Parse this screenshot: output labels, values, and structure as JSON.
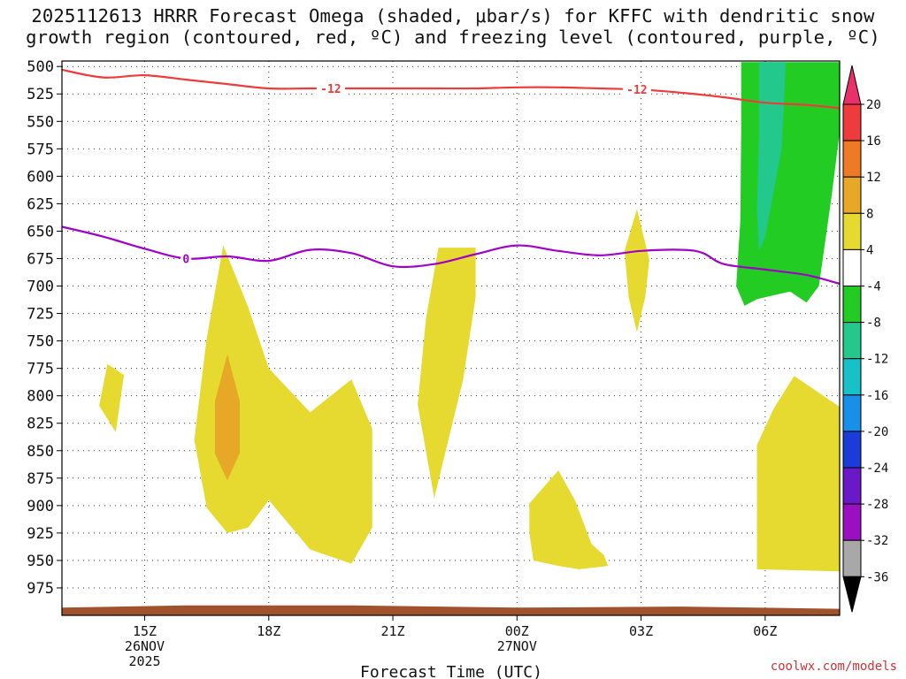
{
  "title": {
    "line1": "2025112613 HRRR Forecast Omega (shaded, μbar/s) for KFFC with dendritic snow",
    "line2": "growth region (contoured, red, ºC) and freezing level (contoured, purple, ºC)"
  },
  "credit": "coolwx.com/models",
  "chart_data": {
    "type": "contour",
    "xlabel": "Forecast Time (UTC)",
    "xlim": [
      13,
      31.8
    ],
    "ylim": [
      1000,
      495
    ],
    "y_ticks": [
      500,
      525,
      550,
      575,
      600,
      625,
      650,
      675,
      700,
      725,
      750,
      775,
      800,
      825,
      850,
      875,
      900,
      925,
      950,
      975
    ],
    "x_ticks": [
      {
        "hour": 15,
        "label": "15Z",
        "sub1": "26NOV",
        "sub2": "2025"
      },
      {
        "hour": 18,
        "label": "18Z"
      },
      {
        "hour": 21,
        "label": "21Z"
      },
      {
        "hour": 24,
        "label": "00Z",
        "sub1": "27NOV"
      },
      {
        "hour": 27,
        "label": "03Z"
      },
      {
        "hour": 30,
        "label": "06Z"
      }
    ],
    "colorbar": {
      "labels": [
        "20",
        "16",
        "12",
        "8",
        "4",
        "-4",
        "-8",
        "-12",
        "-16",
        "-20",
        "-24",
        "-28",
        "-32",
        "-36"
      ],
      "colors": [
        "#e8306a",
        "#ee3b3b",
        "#ee7a26",
        "#e6a826",
        "#e6d930",
        "#ffffff",
        "#22cc22",
        "#22c88c",
        "#18c0c8",
        "#1890e8",
        "#1a3cd8",
        "#6a18c8",
        "#9a10c0",
        "#a8a8a8",
        "#000000"
      ]
    },
    "dgz_contour": {
      "label": "-12",
      "color": "#ee3b3b",
      "points": [
        [
          13,
          503
        ],
        [
          14,
          510
        ],
        [
          15,
          508
        ],
        [
          16,
          512
        ],
        [
          17,
          516
        ],
        [
          18,
          520
        ],
        [
          19,
          520
        ],
        [
          20,
          520
        ],
        [
          21,
          520
        ],
        [
          22,
          520
        ],
        [
          23,
          520
        ],
        [
          24,
          519
        ],
        [
          25,
          519
        ],
        [
          26,
          520
        ],
        [
          27,
          521
        ],
        [
          28,
          524
        ],
        [
          29,
          528
        ],
        [
          30,
          533
        ],
        [
          31,
          535
        ],
        [
          31.8,
          538
        ]
      ]
    },
    "freezing_contour": {
      "label": "0",
      "color": "#a000c8",
      "points": [
        [
          13,
          646
        ],
        [
          14,
          655
        ],
        [
          15,
          666
        ],
        [
          16,
          675
        ],
        [
          17,
          673
        ],
        [
          18,
          677
        ],
        [
          19,
          667
        ],
        [
          20,
          670
        ],
        [
          21,
          682
        ],
        [
          22,
          680
        ],
        [
          23,
          671
        ],
        [
          24,
          663
        ],
        [
          25,
          668
        ],
        [
          26,
          672
        ],
        [
          27,
          668
        ],
        [
          28,
          667
        ],
        [
          28.5,
          670
        ],
        [
          29,
          680
        ],
        [
          30,
          685
        ],
        [
          31,
          690
        ],
        [
          31.8,
          698
        ]
      ]
    },
    "omega_regions": [
      {
        "value": 4,
        "color": "#e6d930",
        "points": [
          [
            14.1,
            771
          ],
          [
            14.5,
            781
          ],
          [
            14.3,
            833
          ],
          [
            13.9,
            809
          ]
        ]
      },
      {
        "value": 4,
        "color": "#e6d930",
        "points": [
          [
            16.9,
            663
          ],
          [
            17.5,
            719
          ],
          [
            18,
            775
          ],
          [
            19,
            815
          ],
          [
            20,
            785
          ],
          [
            20.5,
            830
          ],
          [
            20.5,
            920
          ],
          [
            20,
            953
          ],
          [
            19,
            940
          ],
          [
            18,
            895
          ],
          [
            17.5,
            920
          ],
          [
            17,
            925
          ],
          [
            16.5,
            902
          ],
          [
            16.2,
            840
          ],
          [
            16.5,
            748
          ]
        ]
      },
      {
        "value": 8,
        "color": "#e6a826",
        "points": [
          [
            17,
            762
          ],
          [
            17.3,
            805
          ],
          [
            17.3,
            852
          ],
          [
            17,
            877
          ],
          [
            16.7,
            853
          ],
          [
            16.7,
            805
          ]
        ]
      },
      {
        "value": 4,
        "color": "#e6d930",
        "points": [
          [
            22.1,
            665
          ],
          [
            23,
            665
          ],
          [
            23,
            710
          ],
          [
            22.7,
            785
          ],
          [
            22,
            893
          ],
          [
            21.6,
            808
          ],
          [
            21.8,
            730
          ]
        ]
      },
      {
        "value": 4,
        "color": "#e6d930",
        "points": [
          [
            24.3,
            898
          ],
          [
            25,
            868
          ],
          [
            25.4,
            895
          ],
          [
            25.8,
            935
          ],
          [
            26.1,
            945
          ],
          [
            26.2,
            955
          ],
          [
            25.5,
            958
          ],
          [
            25,
            955
          ],
          [
            24.4,
            950
          ],
          [
            24.3,
            925
          ]
        ]
      },
      {
        "value": 4,
        "color": "#e6d930",
        "points": [
          [
            26.9,
            630
          ],
          [
            27.2,
            676
          ],
          [
            27.1,
            710
          ],
          [
            26.9,
            742
          ],
          [
            26.7,
            710
          ],
          [
            26.6,
            668
          ]
        ]
      },
      {
        "value": 4,
        "color": "#e6d930",
        "points": [
          [
            29.8,
            845
          ],
          [
            30.2,
            812
          ],
          [
            30.7,
            782
          ],
          [
            31.8,
            810
          ],
          [
            31.8,
            960
          ],
          [
            29.8,
            958
          ]
        ]
      },
      {
        "value": -4,
        "color": "#22cc22",
        "points": [
          [
            29.42,
            496
          ],
          [
            31.8,
            496
          ],
          [
            31.8,
            560
          ],
          [
            31.6,
            620
          ],
          [
            31.3,
            700
          ],
          [
            31,
            715
          ],
          [
            30.6,
            705
          ],
          [
            29.8,
            712
          ],
          [
            29.5,
            718
          ],
          [
            29.3,
            700
          ],
          [
            29.4,
            640
          ],
          [
            29.42,
            560
          ]
        ]
      },
      {
        "value": -8,
        "color": "#22c88c",
        "points": [
          [
            29.85,
            496
          ],
          [
            30.5,
            496
          ],
          [
            30.4,
            575
          ],
          [
            30,
            655
          ],
          [
            29.85,
            668
          ],
          [
            29.8,
            630
          ],
          [
            29.85,
            560
          ]
        ]
      }
    ],
    "ground": {
      "color": "#a0522d",
      "bottom": 1000,
      "top_points": [
        [
          13,
          993
        ],
        [
          16,
          991
        ],
        [
          20,
          991
        ],
        [
          24,
          993
        ],
        [
          28,
          992
        ],
        [
          31.8,
          994
        ]
      ]
    }
  }
}
